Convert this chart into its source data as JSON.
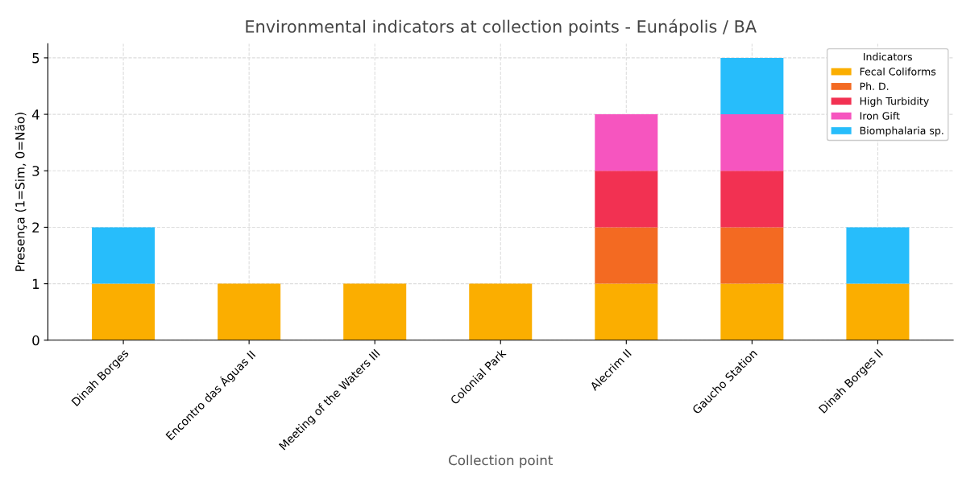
{
  "chart_data": {
    "type": "bar",
    "stacked": true,
    "title": "Environmental indicators at collection points - Eunápolis / BA",
    "xlabel": "Collection point",
    "ylabel": "Presença (1=Sim, 0=Não)",
    "legend_title": "Indicators",
    "categories": [
      "Dinah Borges",
      "Encontro das Águas II",
      "Meeting of the Waters III",
      "Colonial Park",
      "Alecrim II",
      "Gaucho Station",
      "Dinah Borges II"
    ],
    "series": [
      {
        "name": "Fecal Coliforms",
        "color": "#fbae00",
        "values": [
          1,
          1,
          1,
          1,
          1,
          1,
          1
        ]
      },
      {
        "name": "Ph. D.",
        "color": "#f36a22",
        "values": [
          0,
          0,
          0,
          0,
          1,
          1,
          0
        ]
      },
      {
        "name": "High Turbidity",
        "color": "#f23152",
        "values": [
          0,
          0,
          0,
          0,
          1,
          1,
          0
        ]
      },
      {
        "name": "Iron Gift",
        "color": "#f655bf",
        "values": [
          0,
          0,
          0,
          0,
          1,
          1,
          0
        ]
      },
      {
        "name": "Biomphalaria sp.",
        "color": "#27bdfb",
        "values": [
          1,
          0,
          0,
          0,
          0,
          1,
          1
        ]
      }
    ],
    "ylim": [
      0,
      5.25
    ],
    "yticks": [
      0,
      1,
      2,
      3,
      4,
      5
    ],
    "grid": true,
    "legend": "top right"
  }
}
